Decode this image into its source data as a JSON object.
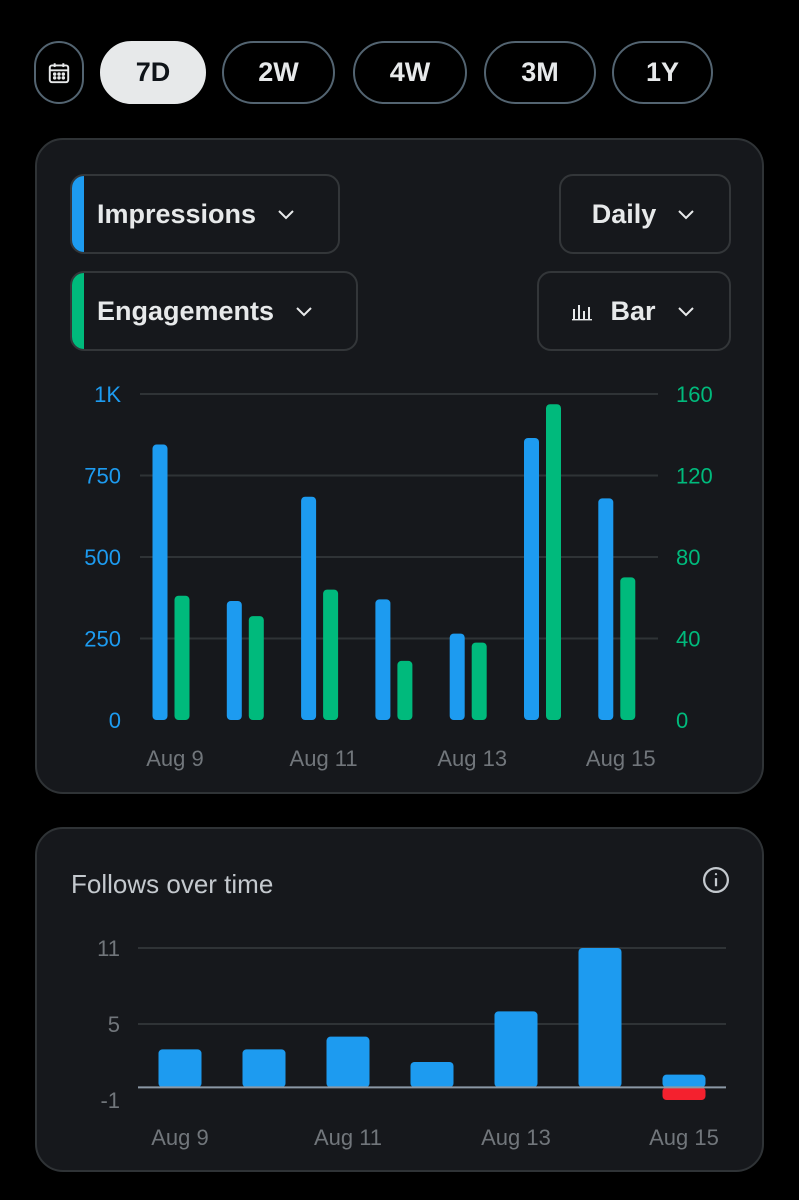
{
  "range_selector": {
    "options": [
      "7D",
      "2W",
      "4W",
      "3M",
      "1Y"
    ],
    "selected": "7D"
  },
  "controls": {
    "metric1": {
      "label": "Impressions",
      "color": "#1d9bf0"
    },
    "metric2": {
      "label": "Engagements",
      "color": "#00ba7c"
    },
    "interval": "Daily",
    "chart_type": "Bar"
  },
  "follows": {
    "title": "Follows over time"
  },
  "colors": {
    "impressions": "#1d9bf0",
    "engagements": "#00ba7c",
    "follows": "#1d9bf0",
    "negative": "#f4212e",
    "axis_text": "#71767b",
    "grid": "#2f3336"
  },
  "icons": {
    "calendar": "calendar-icon",
    "chevron": "chevron-down-icon",
    "bar_chart": "bar-chart-icon",
    "info": "info-icon"
  },
  "chart_data": [
    {
      "type": "bar",
      "categories": [
        "Aug 9",
        "Aug 10",
        "Aug 11",
        "Aug 12",
        "Aug 13",
        "Aug 14",
        "Aug 15"
      ],
      "x_tick_labels": [
        "Aug 9",
        "",
        "Aug 11",
        "",
        "Aug 13",
        "",
        "Aug 15"
      ],
      "series": [
        {
          "name": "Impressions",
          "axis": "left",
          "color": "#1d9bf0",
          "values": [
            845,
            365,
            685,
            370,
            265,
            865,
            680
          ]
        },
        {
          "name": "Engagements",
          "axis": "right",
          "color": "#00ba7c",
          "values": [
            61,
            51,
            64,
            29,
            38,
            155,
            70
          ]
        }
      ],
      "y_left": {
        "ticks": [
          "0",
          "250",
          "500",
          "750",
          "1K"
        ],
        "ylim": [
          0,
          1000
        ]
      },
      "y_right": {
        "ticks": [
          "0",
          "40",
          "80",
          "120",
          "160"
        ],
        "ylim": [
          0,
          160
        ]
      },
      "grid": true
    },
    {
      "type": "bar",
      "title": "Follows over time",
      "categories": [
        "Aug 9",
        "Aug 10",
        "Aug 11",
        "Aug 12",
        "Aug 13",
        "Aug 14",
        "Aug 15"
      ],
      "x_tick_labels": [
        "Aug 9",
        "",
        "Aug 11",
        "",
        "Aug 13",
        "",
        "Aug 15"
      ],
      "series": [
        {
          "name": "Follows",
          "color": "#1d9bf0",
          "values": [
            3,
            3,
            4,
            2,
            6,
            11,
            1
          ]
        },
        {
          "name": "Unfollows",
          "color": "#f4212e",
          "values": [
            0,
            0,
            0,
            0,
            0,
            0,
            -1
          ]
        }
      ],
      "y_ticks": [
        "-1",
        "5",
        "11"
      ],
      "ylim": [
        -1,
        11
      ],
      "grid": true
    }
  ]
}
